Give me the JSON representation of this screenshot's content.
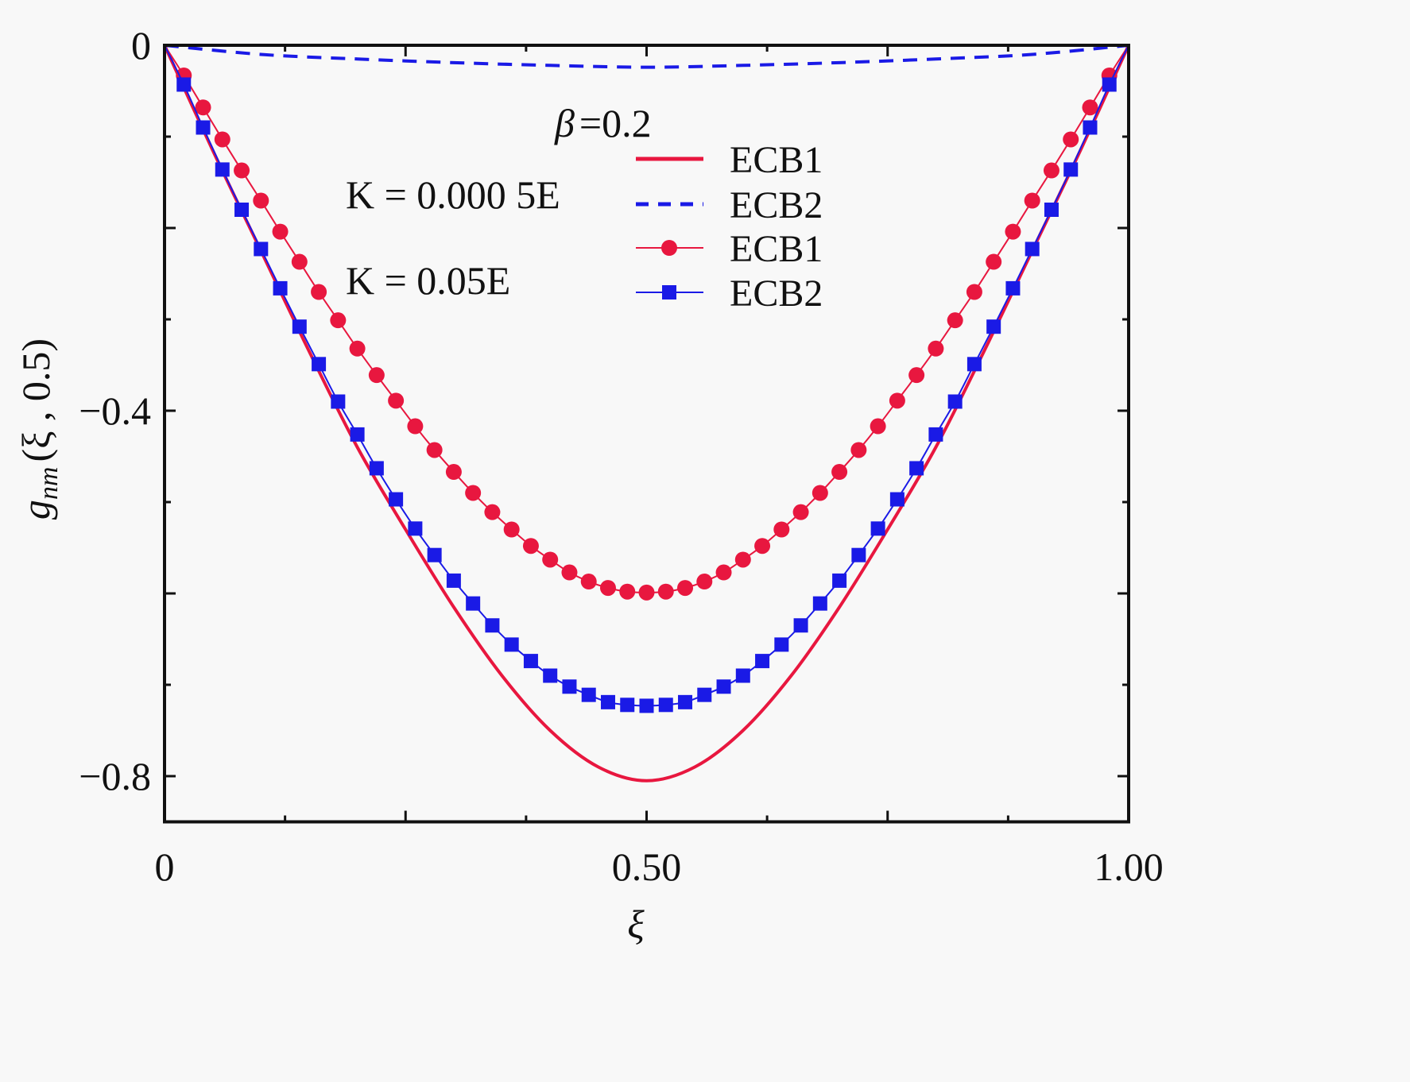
{
  "chart_data": {
    "type": "line",
    "xlabel": "ξ",
    "ylabel": {
      "main": "g",
      "sub": "nm",
      "args": "(ξ , 0.5)"
    },
    "xlim": [
      0,
      1.0
    ],
    "ylim": [
      -0.85,
      0
    ],
    "x_ticks": [
      {
        "value": 0,
        "label": "0"
      },
      {
        "value": 0.5,
        "label": "0.50"
      },
      {
        "value": 1.0,
        "label": "1.00"
      }
    ],
    "x_major_ticks": [
      0,
      0.25,
      0.5,
      0.75,
      1.0
    ],
    "x_minor_ticks": [
      0.125,
      0.375,
      0.625,
      0.875
    ],
    "y_ticks": [
      {
        "value": 0,
        "label": "0"
      },
      {
        "value": -0.4,
        "label": "−0.4"
      },
      {
        "value": -0.8,
        "label": "−0.8"
      }
    ],
    "y_major_ticks": [
      0,
      -0.2,
      -0.4,
      -0.6,
      -0.8
    ],
    "y_minor_ticks": [
      -0.1,
      -0.3,
      -0.5,
      -0.7
    ],
    "grid": false,
    "legend_position": "top-center",
    "annotations": {
      "beta": {
        "symbol": "β",
        "text": "=0.2"
      },
      "k1": {
        "symbol": "K",
        "text": "= 0.000 5",
        "unit": "E"
      },
      "k2": {
        "symbol": "K",
        "text": "= 0.05",
        "unit": "E"
      }
    },
    "series": [
      {
        "name": "ECB1",
        "group": "K = 0.000 5E",
        "style": "solid",
        "marker": "none",
        "color": "#e8173f",
        "x": [
          0,
          0.05,
          0.1,
          0.15,
          0.2,
          0.25,
          0.3,
          0.35,
          0.4,
          0.45,
          0.5,
          0.55,
          0.6,
          0.65,
          0.7,
          0.75,
          0.8,
          0.85,
          0.9,
          0.95,
          1.0
        ],
        "y": [
          0,
          -0.115,
          -0.225,
          -0.335,
          -0.44,
          -0.53,
          -0.615,
          -0.69,
          -0.75,
          -0.79,
          -0.805,
          -0.79,
          -0.75,
          -0.69,
          -0.615,
          -0.53,
          -0.44,
          -0.335,
          -0.225,
          -0.115,
          0
        ]
      },
      {
        "name": "ECB2",
        "group": "K = 0.000 5E",
        "style": "dashed",
        "marker": "none",
        "color": "#1a1ae6",
        "x": [
          0,
          0.1,
          0.2,
          0.3,
          0.4,
          0.5,
          0.6,
          0.7,
          0.8,
          0.9,
          1.0
        ],
        "y": [
          0,
          -0.01,
          -0.015,
          -0.019,
          -0.022,
          -0.024,
          -0.022,
          -0.019,
          -0.015,
          -0.01,
          0
        ]
      },
      {
        "name": "ECB1",
        "group": "K = 0.05E",
        "style": "solid",
        "marker": "circle",
        "color": "#e8173f",
        "x": [
          0,
          0.02,
          0.04,
          0.06,
          0.08,
          0.1,
          0.12,
          0.14,
          0.16,
          0.18,
          0.2,
          0.22,
          0.24,
          0.26,
          0.28,
          0.3,
          0.32,
          0.34,
          0.36,
          0.38,
          0.4,
          0.42,
          0.44,
          0.46,
          0.48,
          0.5,
          0.52,
          0.54,
          0.56,
          0.58,
          0.6,
          0.62,
          0.64,
          0.66,
          0.68,
          0.7,
          0.72,
          0.74,
          0.76,
          0.78,
          0.8,
          0.82,
          0.84,
          0.86,
          0.88,
          0.9,
          0.92,
          0.94,
          0.96,
          0.98,
          1.0
        ],
        "y": [
          0,
          -0.033,
          -0.068,
          -0.103,
          -0.137,
          -0.17,
          -0.204,
          -0.237,
          -0.27,
          -0.301,
          -0.332,
          -0.361,
          -0.389,
          -0.417,
          -0.443,
          -0.467,
          -0.49,
          -0.511,
          -0.53,
          -0.548,
          -0.563,
          -0.577,
          -0.587,
          -0.594,
          -0.598,
          -0.599,
          -0.598,
          -0.594,
          -0.587,
          -0.577,
          -0.563,
          -0.548,
          -0.53,
          -0.511,
          -0.49,
          -0.467,
          -0.443,
          -0.417,
          -0.389,
          -0.361,
          -0.332,
          -0.301,
          -0.27,
          -0.237,
          -0.204,
          -0.17,
          -0.137,
          -0.103,
          -0.068,
          -0.033,
          0
        ]
      },
      {
        "name": "ECB2",
        "group": "K = 0.05E",
        "style": "solid",
        "marker": "square",
        "color": "#1a1ae6",
        "x": [
          0,
          0.02,
          0.04,
          0.06,
          0.08,
          0.1,
          0.12,
          0.14,
          0.16,
          0.18,
          0.2,
          0.22,
          0.24,
          0.26,
          0.28,
          0.3,
          0.32,
          0.34,
          0.36,
          0.38,
          0.4,
          0.42,
          0.44,
          0.46,
          0.48,
          0.5,
          0.52,
          0.54,
          0.56,
          0.58,
          0.6,
          0.62,
          0.64,
          0.66,
          0.68,
          0.7,
          0.72,
          0.74,
          0.76,
          0.78,
          0.8,
          0.82,
          0.84,
          0.86,
          0.88,
          0.9,
          0.92,
          0.94,
          0.96,
          0.98,
          1.0
        ],
        "y": [
          0,
          -0.043,
          -0.09,
          -0.136,
          -0.18,
          -0.223,
          -0.266,
          -0.308,
          -0.349,
          -0.39,
          -0.426,
          -0.463,
          -0.497,
          -0.529,
          -0.558,
          -0.586,
          -0.611,
          -0.635,
          -0.656,
          -0.674,
          -0.69,
          -0.702,
          -0.711,
          -0.719,
          -0.722,
          -0.723,
          -0.722,
          -0.719,
          -0.711,
          -0.702,
          -0.69,
          -0.674,
          -0.656,
          -0.635,
          -0.611,
          -0.586,
          -0.558,
          -0.529,
          -0.497,
          -0.463,
          -0.426,
          -0.39,
          -0.349,
          -0.308,
          -0.266,
          -0.223,
          -0.18,
          -0.136,
          -0.09,
          -0.043,
          0
        ]
      }
    ]
  }
}
